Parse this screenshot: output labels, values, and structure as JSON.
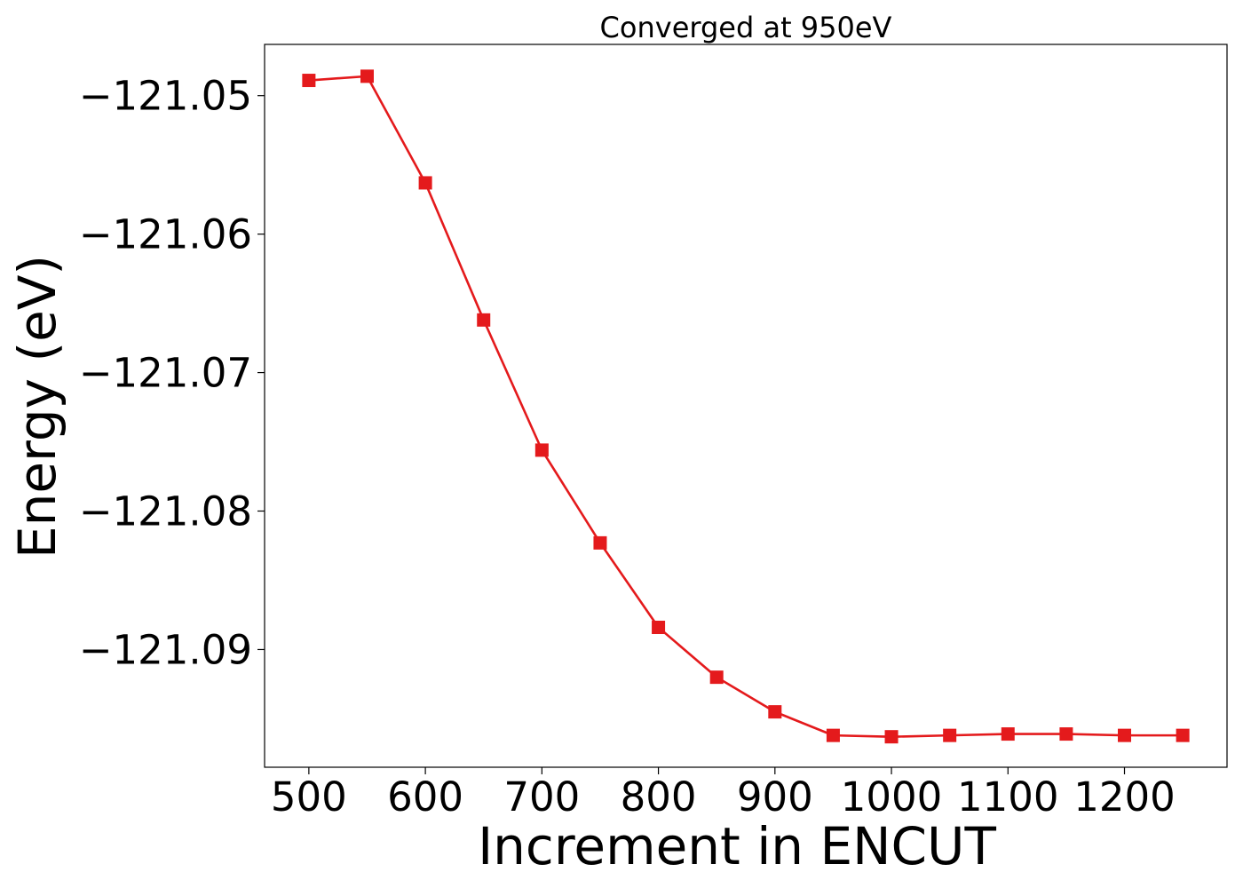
{
  "chart_data": {
    "type": "line",
    "title": "Converged at 950eV",
    "xlabel": "Increment in ENCUT",
    "ylabel": "Energy (eV)",
    "xlim": [
      462,
      1288
    ],
    "ylim": [
      -121.0985,
      -121.0463
    ],
    "x_ticks": [
      500,
      600,
      700,
      800,
      900,
      1000,
      1100,
      1200
    ],
    "x_tick_labels": [
      "500",
      "600",
      "700",
      "800",
      "900",
      "1000",
      "1100",
      "1200"
    ],
    "y_ticks": [
      -121.05,
      -121.06,
      -121.07,
      -121.08,
      -121.09
    ],
    "y_tick_labels": [
      "−121.05",
      "−121.06",
      "−121.07",
      "−121.08",
      "−121.09"
    ],
    "grid": false,
    "series": [
      {
        "color": "#e41a1c",
        "marker": "square",
        "x": [
          500,
          550,
          600,
          650,
          700,
          750,
          800,
          850,
          900,
          950,
          1000,
          1050,
          1100,
          1150,
          1200,
          1250
        ],
        "y": [
          -121.0489,
          -121.0486,
          -121.0563,
          -121.0662,
          -121.0756,
          -121.0823,
          -121.0884,
          -121.092,
          -121.0945,
          -121.0962,
          -121.0963,
          -121.0962,
          -121.0961,
          -121.0961,
          -121.0962,
          -121.0962
        ]
      }
    ]
  }
}
